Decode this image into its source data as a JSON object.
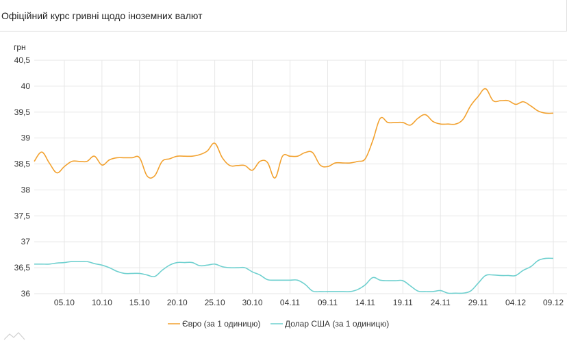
{
  "header": {
    "title": "Офіційний курс гривні щодо іноземних валют"
  },
  "chart_data": {
    "type": "line",
    "title": "Офіційний курс гривні щодо іноземних валют",
    "ylabel": "грн",
    "xlabel": "",
    "ylim": [
      36,
      40.5
    ],
    "yticks": [
      36,
      36.5,
      37,
      37.5,
      38,
      38.5,
      39,
      39.5,
      40,
      40.5
    ],
    "ytick_labels": [
      "36",
      "36,5",
      "37",
      "37,5",
      "38",
      "38,5",
      "39",
      "39,5",
      "40",
      "40,5"
    ],
    "x_start": "01.10",
    "x_end": "09.12",
    "xtick_labels": [
      "05.10",
      "10.10",
      "15.10",
      "20.10",
      "25.10",
      "30.10",
      "04.11",
      "09.11",
      "14.11",
      "19.11",
      "24.11",
      "29.11",
      "04.12",
      "09.12"
    ],
    "grid": true,
    "legend": "bottom",
    "colors": {
      "euro": "#f2a12e",
      "usd": "#6fd0cf"
    },
    "x": [
      "01.10",
      "02.10",
      "03.10",
      "04.10",
      "05.10",
      "06.10",
      "07.10",
      "08.10",
      "09.10",
      "10.10",
      "11.10",
      "12.10",
      "13.10",
      "14.10",
      "15.10",
      "16.10",
      "17.10",
      "18.10",
      "19.10",
      "20.10",
      "21.10",
      "22.10",
      "23.10",
      "24.10",
      "25.10",
      "26.10",
      "27.10",
      "28.10",
      "29.10",
      "30.10",
      "31.10",
      "01.11",
      "02.11",
      "03.11",
      "04.11",
      "05.11",
      "06.11",
      "07.11",
      "08.11",
      "09.11",
      "10.11",
      "11.11",
      "12.11",
      "13.11",
      "14.11",
      "15.11",
      "16.11",
      "17.11",
      "18.11",
      "19.11",
      "20.11",
      "21.11",
      "22.11",
      "23.11",
      "24.11",
      "25.11",
      "26.11",
      "27.11",
      "28.11",
      "29.11",
      "30.11",
      "01.12",
      "02.12",
      "03.12",
      "04.12",
      "05.12",
      "06.12",
      "07.12",
      "08.12",
      "09.12"
    ],
    "series": [
      {
        "name": "Євро (за 1 одиницю)",
        "values": [
          38.55,
          38.73,
          38.52,
          38.33,
          38.45,
          38.55,
          38.55,
          38.55,
          38.65,
          38.48,
          38.58,
          38.62,
          38.62,
          38.62,
          38.62,
          38.27,
          38.27,
          38.55,
          38.6,
          38.65,
          38.65,
          38.65,
          38.68,
          38.75,
          38.9,
          38.62,
          38.47,
          38.47,
          38.47,
          38.38,
          38.55,
          38.53,
          38.23,
          38.65,
          38.65,
          38.65,
          38.72,
          38.72,
          38.48,
          38.45,
          38.52,
          38.52,
          38.52,
          38.55,
          38.6,
          38.95,
          39.38,
          39.3,
          39.3,
          39.3,
          39.25,
          39.38,
          39.45,
          39.32,
          39.27,
          39.27,
          39.27,
          39.36,
          39.62,
          39.8,
          39.95,
          39.72,
          39.72,
          39.72,
          39.65,
          39.7,
          39.62,
          39.52,
          39.48,
          39.48
        ]
      },
      {
        "name": "Долар США (за 1 одиницю)",
        "values": [
          36.57,
          36.57,
          36.57,
          36.59,
          36.6,
          36.62,
          36.62,
          36.62,
          36.58,
          36.55,
          36.5,
          36.43,
          36.39,
          36.39,
          36.39,
          36.36,
          36.33,
          36.45,
          36.55,
          36.6,
          36.6,
          36.6,
          36.54,
          36.55,
          36.57,
          36.52,
          36.5,
          36.5,
          36.5,
          36.42,
          36.36,
          36.27,
          36.26,
          36.26,
          36.26,
          36.26,
          36.18,
          36.05,
          36.04,
          36.04,
          36.04,
          36.04,
          36.04,
          36.08,
          36.17,
          36.31,
          36.26,
          36.25,
          36.25,
          36.25,
          36.15,
          36.05,
          36.04,
          36.04,
          36.06,
          36.01,
          36.01,
          36.01,
          36.05,
          36.2,
          36.35,
          36.36,
          36.35,
          36.35,
          36.35,
          36.45,
          36.52,
          36.64,
          36.68,
          36.68
        ]
      }
    ]
  }
}
